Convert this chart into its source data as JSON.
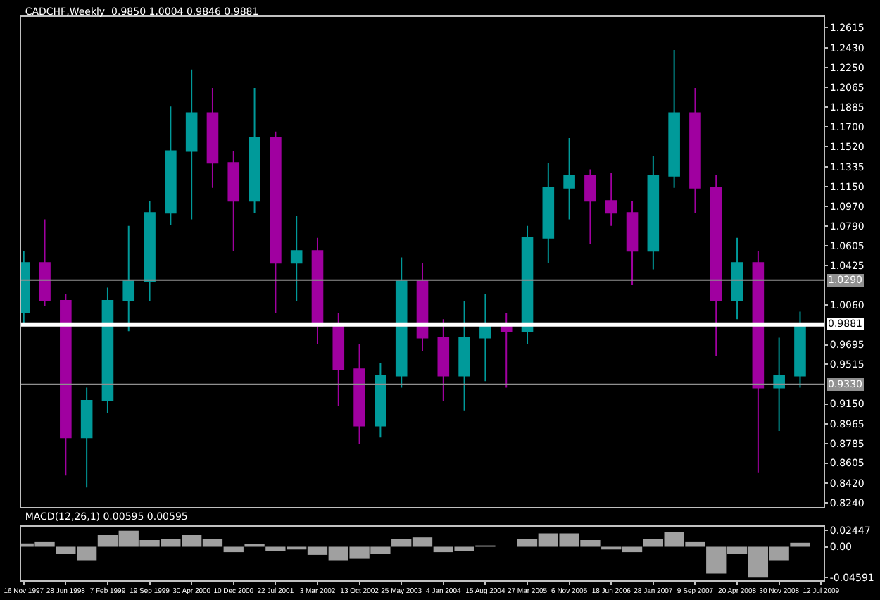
{
  "chart_data": [
    {
      "type": "candlestick",
      "title": "CADCHF,Weekly  0.9850 1.0004 0.9846 0.9881",
      "x": [
        "1997-11-16",
        "1998-03-08",
        "1998-06-28",
        "1998-10-18",
        "1999-02-07",
        "1999-05-30",
        "1999-09-19",
        "2000-01-09",
        "2000-04-30",
        "2000-08-20",
        "2000-12-10",
        "2001-04-01",
        "2001-07-22",
        "2001-11-11",
        "2002-03-03",
        "2002-06-23",
        "2002-10-13",
        "2003-02-02",
        "2003-05-25",
        "2003-09-14",
        "2004-01-04",
        "2004-04-25",
        "2004-08-15",
        "2004-12-05",
        "2005-03-27",
        "2005-07-17",
        "2005-11-06",
        "2006-02-26",
        "2006-06-18",
        "2006-10-08",
        "2007-01-28",
        "2007-05-20",
        "2007-09-09",
        "2007-12-30",
        "2008-04-20",
        "2008-08-10",
        "2008-11-30",
        "2009-03-22"
      ],
      "ohlc": [
        [
          0.999,
          1.056,
          0.988,
          1.045
        ],
        [
          1.045,
          1.085,
          1.005,
          1.01
        ],
        [
          1.01,
          1.016,
          0.849,
          0.884
        ],
        [
          0.884,
          0.93,
          0.838,
          0.918
        ],
        [
          0.918,
          1.022,
          0.907,
          1.01
        ],
        [
          1.01,
          1.079,
          0.982,
          1.028
        ],
        [
          1.028,
          1.102,
          1.01,
          1.091
        ],
        [
          1.091,
          1.189,
          1.08,
          1.148
        ],
        [
          1.148,
          1.223,
          1.085,
          1.183
        ],
        [
          1.183,
          1.206,
          1.114,
          1.137
        ],
        [
          1.137,
          1.148,
          1.056,
          1.102
        ],
        [
          1.102,
          1.206,
          1.091,
          1.16
        ],
        [
          1.16,
          1.166,
          0.999,
          1.045
        ],
        [
          1.045,
          1.088,
          1.01,
          1.056
        ],
        [
          1.056,
          1.068,
          0.97,
          0.987
        ],
        [
          0.987,
          0.999,
          0.913,
          0.947
        ],
        [
          0.947,
          0.97,
          0.878,
          0.895
        ],
        [
          0.895,
          0.953,
          0.884,
          0.941
        ],
        [
          0.941,
          1.05,
          0.93,
          1.028
        ],
        [
          1.028,
          1.045,
          0.964,
          0.976
        ],
        [
          0.976,
          0.993,
          0.918,
          0.941
        ],
        [
          0.941,
          1.01,
          0.909,
          0.976
        ],
        [
          0.976,
          1.016,
          0.936,
          0.987
        ],
        [
          0.987,
          0.999,
          0.93,
          0.982
        ],
        [
          0.982,
          1.079,
          0.97,
          1.068
        ],
        [
          1.068,
          1.137,
          1.045,
          1.114
        ],
        [
          1.114,
          1.16,
          1.085,
          1.125
        ],
        [
          1.125,
          1.131,
          1.062,
          1.102
        ],
        [
          1.102,
          1.128,
          1.079,
          1.091
        ],
        [
          1.091,
          1.102,
          1.025,
          1.056
        ],
        [
          1.056,
          1.143,
          1.039,
          1.125
        ],
        [
          1.125,
          1.241,
          1.114,
          1.183
        ],
        [
          1.183,
          1.206,
          1.091,
          1.114
        ],
        [
          1.114,
          1.126,
          0.959,
          1.01
        ],
        [
          1.01,
          1.068,
          0.993,
          1.045
        ],
        [
          1.045,
          1.056,
          0.852,
          0.93
        ],
        [
          0.93,
          0.976,
          0.89,
          0.941
        ],
        [
          0.941,
          1.0,
          0.93,
          0.988
        ]
      ],
      "colors": [
        "#009a9a",
        "#a000a0",
        "#a000a0",
        "#009a9a",
        "#009a9a",
        "#009a9a",
        "#009a9a",
        "#009a9a",
        "#009a9a",
        "#a000a0",
        "#a000a0",
        "#009a9a",
        "#a000a0",
        "#009a9a",
        "#a000a0",
        "#a000a0",
        "#a000a0",
        "#009a9a",
        "#009a9a",
        "#a000a0",
        "#a000a0",
        "#009a9a",
        "#009a9a",
        "#a000a0",
        "#009a9a",
        "#009a9a",
        "#009a9a",
        "#a000a0",
        "#a000a0",
        "#a000a0",
        "#009a9a",
        "#009a9a",
        "#a000a0",
        "#a000a0",
        "#009a9a",
        "#a000a0",
        "#009a9a",
        "#009a9a"
      ],
      "xlim": [
        "1997-11-02",
        "2009-07-26"
      ],
      "ylim": [
        0.82,
        1.2715
      ],
      "yticks": [
        {
          "value": 0.824,
          "label": "0.8240"
        },
        {
          "value": 0.842,
          "label": "0.8420"
        },
        {
          "value": 0.8605,
          "label": "0.8605"
        },
        {
          "value": 0.8785,
          "label": "0.8785"
        },
        {
          "value": 0.8965,
          "label": "0.8965"
        },
        {
          "value": 0.915,
          "label": "0.9150"
        },
        {
          "value": 0.9515,
          "label": "0.9515"
        },
        {
          "value": 0.9695,
          "label": "0.9695"
        },
        {
          "value": 1.006,
          "label": "1.0060"
        },
        {
          "value": 1.0425,
          "label": "1.0425"
        },
        {
          "value": 1.0605,
          "label": "1.0605"
        },
        {
          "value": 1.079,
          "label": "1.0790"
        },
        {
          "value": 1.097,
          "label": "1.0970"
        },
        {
          "value": 1.115,
          "label": "1.1150"
        },
        {
          "value": 1.1335,
          "label": "1.1335"
        },
        {
          "value": 1.152,
          "label": "1.1520"
        },
        {
          "value": 1.17,
          "label": "1.1700"
        },
        {
          "value": 1.1885,
          "label": "1.1885"
        },
        {
          "value": 1.2065,
          "label": "1.2065"
        },
        {
          "value": 1.225,
          "label": "1.2250"
        },
        {
          "value": 1.243,
          "label": "1.2430"
        },
        {
          "value": 1.2615,
          "label": "1.2615"
        }
      ],
      "ref_lines": [
        {
          "axis": "y",
          "value": 1.029,
          "label": "1.0290",
          "color": "#909090"
        },
        {
          "axis": "y",
          "value": 0.9881,
          "label": "0.9881",
          "color": "#ffffff"
        },
        {
          "axis": "y",
          "value": 0.933,
          "label": "0.9330",
          "color": "#909090"
        }
      ],
      "tick_labels": "y",
      "grid": false
    },
    {
      "type": "bar",
      "title": "MACD(12,26,1) 0.00595 0.00595",
      "x": [
        "1997-11-16",
        "1998-03-08",
        "1998-06-28",
        "1998-10-18",
        "1999-02-07",
        "1999-05-30",
        "1999-09-19",
        "2000-01-09",
        "2000-04-30",
        "2000-08-20",
        "2000-12-10",
        "2001-04-01",
        "2001-07-22",
        "2001-11-11",
        "2002-03-03",
        "2002-06-23",
        "2002-10-13",
        "2003-02-02",
        "2003-05-25",
        "2003-09-14",
        "2004-01-04",
        "2004-04-25",
        "2004-08-15",
        "2004-12-05",
        "2005-03-27",
        "2005-07-17",
        "2005-11-06",
        "2006-02-26",
        "2006-06-18",
        "2006-10-08",
        "2007-01-28",
        "2007-05-20",
        "2007-09-09",
        "2007-12-30",
        "2008-04-20",
        "2008-08-10",
        "2008-11-30",
        "2009-03-22"
      ],
      "values": [
        0.005,
        0.008,
        -0.01,
        -0.02,
        0.018,
        0.024,
        0.01,
        0.012,
        0.018,
        0.012,
        -0.008,
        0.004,
        -0.006,
        -0.004,
        -0.012,
        -0.02,
        -0.018,
        -0.01,
        0.012,
        0.014,
        -0.008,
        -0.006,
        0.002,
        0.0,
        0.012,
        0.02,
        0.02,
        0.01,
        -0.004,
        -0.008,
        0.012,
        0.022,
        0.008,
        -0.04,
        -0.01,
        -0.046,
        -0.02,
        0.006
      ],
      "color": "#a0a0a0",
      "xlim": [
        "1997-11-02",
        "2009-07-26"
      ],
      "xticks": [
        {
          "value": "1997-11-16",
          "label": "16 Nov 1997"
        },
        {
          "value": "1998-06-28",
          "label": "28 Jun 1998"
        },
        {
          "value": "1999-02-07",
          "label": "7 Feb 1999"
        },
        {
          "value": "1999-09-19",
          "label": "19 Sep 1999"
        },
        {
          "value": "2000-04-30",
          "label": "30 Apr 2000"
        },
        {
          "value": "2000-12-10",
          "label": "10 Dec 2000"
        },
        {
          "value": "2001-07-22",
          "label": "22 Jul 2001"
        },
        {
          "value": "2002-03-03",
          "label": "3 Mar 2002"
        },
        {
          "value": "2002-10-13",
          "label": "13 Oct 2002"
        },
        {
          "value": "2003-05-25",
          "label": "25 May 2003"
        },
        {
          "value": "2004-01-04",
          "label": "4 Jan 2004"
        },
        {
          "value": "2004-08-15",
          "label": "15 Aug 2004"
        },
        {
          "value": "2005-03-27",
          "label": "27 Mar 2005"
        },
        {
          "value": "2005-11-06",
          "label": "6 Nov 2005"
        },
        {
          "value": "2006-06-18",
          "label": "18 Jun 2006"
        },
        {
          "value": "2007-01-28",
          "label": "28 Jan 2007"
        },
        {
          "value": "2007-09-09",
          "label": "9 Sep 2007"
        },
        {
          "value": "2008-04-20",
          "label": "20 Apr 2008"
        },
        {
          "value": "2008-11-30",
          "label": "30 Nov 2008"
        },
        {
          "value": "2009-07-12",
          "label": "12 Jul 2009"
        }
      ],
      "ylim": [
        -0.05,
        0.03
      ],
      "yticks": [
        {
          "value": 0.02447,
          "label": "0.02447"
        },
        {
          "value": 0,
          "label": "0.00"
        },
        {
          "value": -0.04591,
          "label": "-0.04591"
        }
      ],
      "grid": false
    }
  ]
}
